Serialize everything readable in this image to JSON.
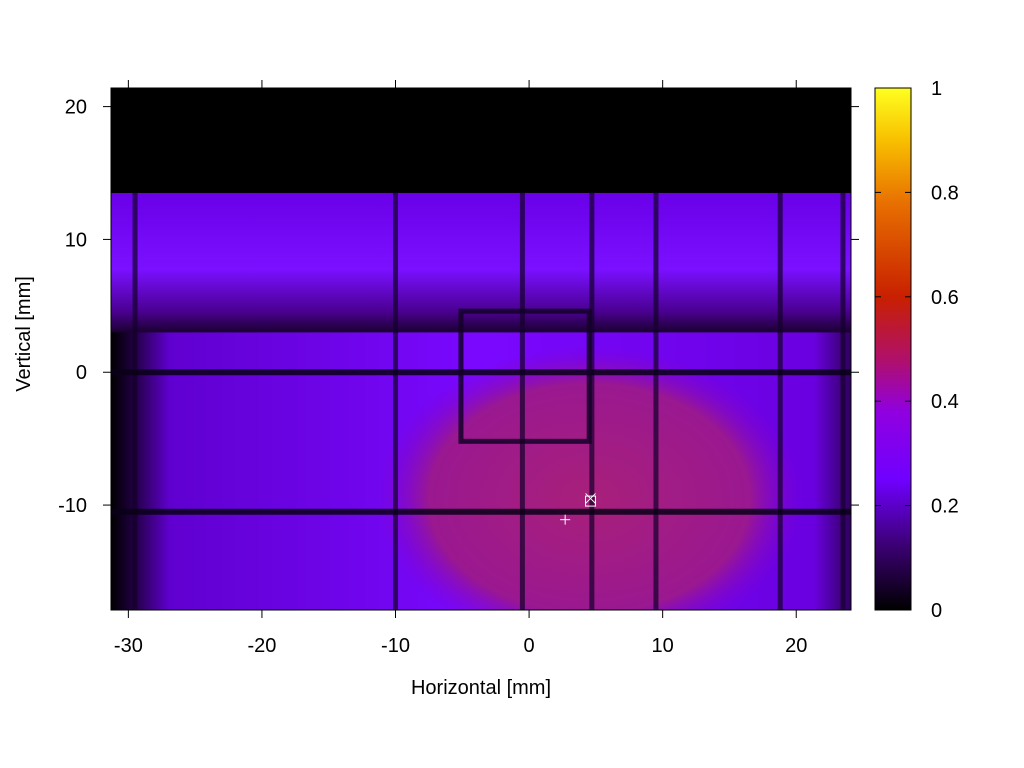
{
  "chart_data": {
    "type": "heatmap",
    "title": "",
    "xlabel": "Horizontal [mm]",
    "ylabel": "Vertical [mm]",
    "xlim": [
      -31.3,
      24.1
    ],
    "ylim": [
      -17.9,
      21.4
    ],
    "xticks": [
      -30,
      -20,
      -10,
      0,
      10,
      20
    ],
    "yticks": [
      -10,
      0,
      10,
      20
    ],
    "colorbar": {
      "range": [
        0,
        1
      ],
      "ticks": [
        0,
        0.2,
        0.4,
        0.6,
        0.8,
        1
      ],
      "palette": [
        "#000000",
        "#4a0090",
        "#8a00ff",
        "#c0205a",
        "#d84000",
        "#f09000",
        "#ffff20"
      ]
    },
    "regions": [
      {
        "label": "no signal (top)",
        "xrange": [
          -31.3,
          24.1
        ],
        "yrange": [
          13.5,
          21.4
        ],
        "value": 0.0
      },
      {
        "label": "upper band",
        "xrange": [
          -31.3,
          24.1
        ],
        "yrange": [
          3,
          13.5
        ],
        "value": 0.24
      },
      {
        "label": "lower field",
        "xrange": [
          -31.3,
          24.1
        ],
        "yrange": [
          -17.9,
          0
        ],
        "value": 0.26
      },
      {
        "label": "central spot",
        "center": [
          4.5,
          -9.5
        ],
        "radius": [
          16,
          11.5
        ],
        "value": 0.42
      }
    ],
    "grid_lines": {
      "vertical_x": [
        -29.5,
        -10,
        -0.5,
        4.7,
        9.5,
        18.8,
        23.5
      ],
      "horizontal_y": [
        0,
        -10.5
      ]
    },
    "square_outline": {
      "x": [
        -5.1,
        4.5
      ],
      "y": [
        -5.2,
        4.6
      ]
    },
    "markers": [
      {
        "symbol": "+",
        "x": 2.7,
        "y": -11.1
      },
      {
        "symbol": "x",
        "x": 4.6,
        "y": -9.5
      },
      {
        "symbol": "square",
        "x": 4.6,
        "y": -9.7
      }
    ]
  }
}
